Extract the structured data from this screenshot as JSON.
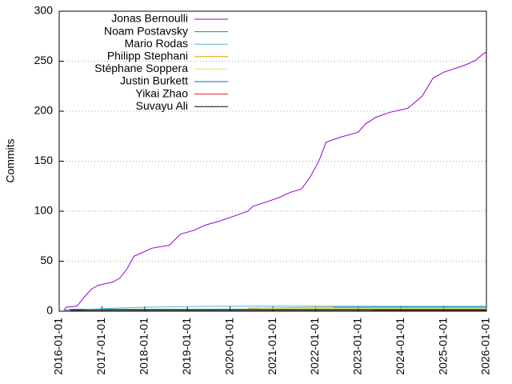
{
  "chart_data": {
    "type": "line",
    "ylabel": "Commits",
    "xlim": [
      "2016-01-01",
      "2026-01-01"
    ],
    "xticks": [
      "2016-01-01",
      "2017-01-01",
      "2018-01-01",
      "2019-01-01",
      "2020-01-01",
      "2021-01-01",
      "2022-01-01",
      "2023-01-01",
      "2024-01-01",
      "2025-01-01",
      "2026-01-01"
    ],
    "ylim": [
      0,
      300
    ],
    "yticks": [
      0,
      50,
      100,
      150,
      200,
      250,
      300
    ],
    "grid": true,
    "legend": "top-left",
    "series": [
      {
        "name": "Jonas Bernoulli",
        "color": "#9400d3",
        "x": [
          "2016-02-10",
          "2016-03-01",
          "2016-06-01",
          "2016-08-01",
          "2016-10-01",
          "2016-12-01",
          "2017-04-01",
          "2017-06-01",
          "2017-08-01",
          "2017-10-01",
          "2017-12-01",
          "2018-03-01",
          "2018-08-01",
          "2018-11-01",
          "2019-03-01",
          "2019-06-01",
          "2019-10-01",
          "2020-02-01",
          "2020-06-01",
          "2020-07-15",
          "2020-11-01",
          "2021-03-01",
          "2021-06-01",
          "2021-09-01",
          "2021-11-15",
          "2022-02-01",
          "2022-04-01",
          "2022-08-01",
          "2023-01-01",
          "2023-03-01",
          "2023-06-01",
          "2023-10-01",
          "2024-03-01",
          "2024-07-01",
          "2024-10-01",
          "2025-01-01",
          "2025-07-01",
          "2025-10-01",
          "2025-12-01",
          "2025-12-28"
        ],
        "values": [
          1,
          4,
          5,
          14,
          22,
          26,
          29,
          33,
          42,
          55,
          58,
          63,
          66,
          77,
          81,
          86,
          90,
          95,
          100,
          105,
          109,
          114,
          119,
          122,
          134,
          151,
          169,
          174,
          179,
          187,
          194,
          199,
          203,
          215,
          233,
          239,
          246,
          251,
          257,
          259
        ]
      },
      {
        "name": "Noam Postavsky",
        "color": "#009e73",
        "x": [
          "2016-02-15",
          "2016-05-01",
          "2017-06-01",
          "2026-01-01"
        ],
        "values": [
          1,
          2,
          2,
          2
        ]
      },
      {
        "name": "Mario Rodas",
        "color": "#56b4e9",
        "x": [
          "2016-03-01",
          "2017-04-01",
          "2018-01-01",
          "2019-10-01",
          "2026-01-01"
        ],
        "values": [
          1,
          3,
          4,
          5,
          5
        ]
      },
      {
        "name": "Philipp Stephani",
        "color": "#e69f00",
        "x": [
          "2020-06-01",
          "2022-01-01",
          "2026-01-01"
        ],
        "values": [
          3,
          4,
          4
        ]
      },
      {
        "name": "Stéphane Soppera",
        "color": "#f0e442",
        "x": [
          "2020-09-01",
          "2026-01-01"
        ],
        "values": [
          3,
          3
        ]
      },
      {
        "name": "Justin Burkett",
        "color": "#0072b2",
        "x": [
          "2022-06-01",
          "2026-01-01"
        ],
        "values": [
          4,
          4
        ]
      },
      {
        "name": "Yikai Zhao",
        "color": "#e51e10",
        "x": [
          "2023-05-01",
          "2026-01-01"
        ],
        "values": [
          1,
          1
        ]
      },
      {
        "name": "Suvayu Ali",
        "color": "#000000",
        "x": [
          "2016-04-01",
          "2026-01-01"
        ],
        "values": [
          1,
          1
        ]
      }
    ]
  }
}
